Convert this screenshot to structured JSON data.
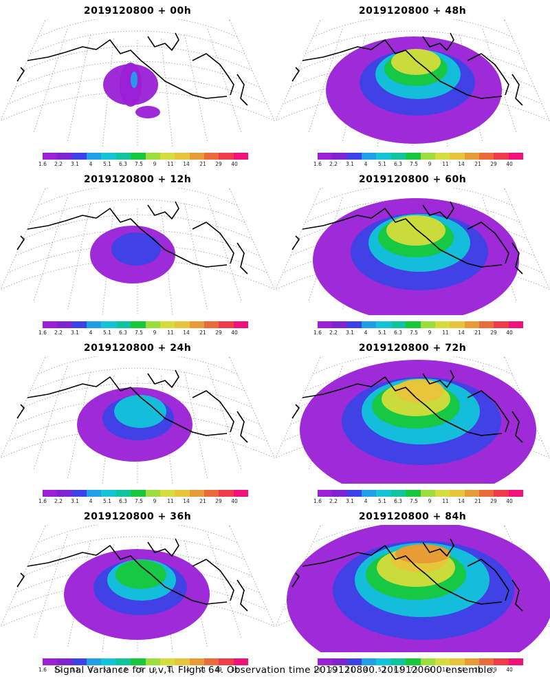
{
  "colorbar": {
    "colors": [
      "#9a1fd6",
      "#7d24d0",
      "#3b43e6",
      "#1f9fe8",
      "#12c4d8",
      "#0fc5a0",
      "#16c83c",
      "#9cdc3c",
      "#d4dd3c",
      "#e8c43a",
      "#e89a34",
      "#ea6a3a",
      "#ee3a4a",
      "#f0127a"
    ],
    "labels": [
      "1.6",
      "2.2",
      "3.1",
      "4",
      "5.1",
      "6.3",
      "7.5",
      "9",
      "11",
      "14",
      "21",
      "29",
      "40"
    ]
  },
  "panels": [
    {
      "title": "2019120800  + 00h",
      "level": 0
    },
    {
      "title": "2019120800  + 48h",
      "level": 4
    },
    {
      "title": "2019120800  + 12h",
      "level": 1
    },
    {
      "title": "2019120800  + 60h",
      "level": 5
    },
    {
      "title": "2019120800  + 24h",
      "level": 2
    },
    {
      "title": "2019120800  + 72h",
      "level": 6
    },
    {
      "title": "2019120800  + 36h",
      "level": 3
    },
    {
      "title": "2019120800  + 84h",
      "level": 7
    }
  ],
  "footer": "Signal Variance for u,v,T. Flight 64. Observation time 2019120800. 2019120600 ensemble."
}
